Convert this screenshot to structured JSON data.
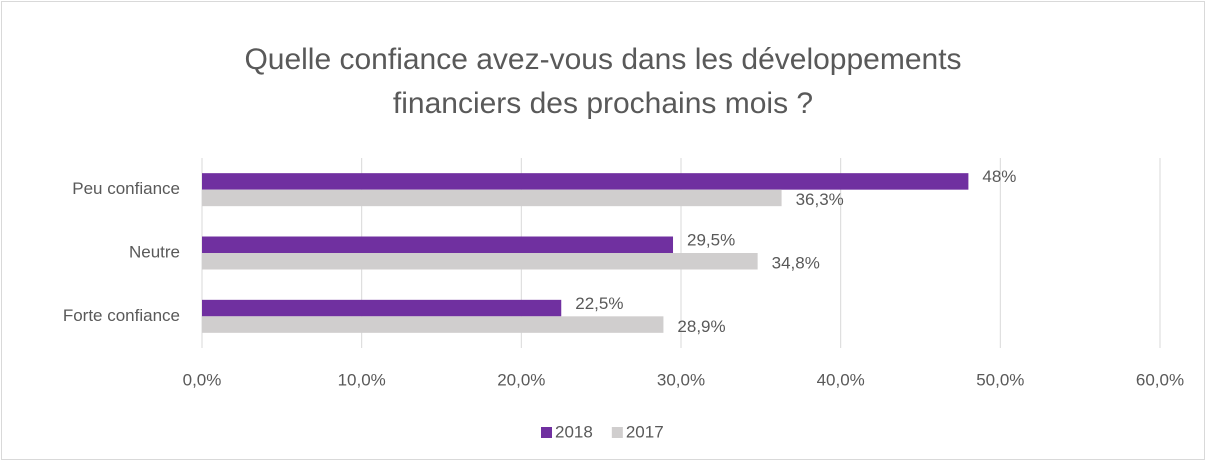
{
  "chart_data": {
    "type": "hbar",
    "title": "Quelle confiance avez-vous dans les développements financiers des prochains mois ?",
    "categories": [
      "Peu confiance",
      "Neutre",
      "Forte confiance"
    ],
    "series": [
      {
        "name": "2018",
        "color": "#7030a0",
        "values": [
          48,
          29.5,
          22.5
        ],
        "value_labels": [
          "48%",
          "29,5%",
          "22,5%"
        ]
      },
      {
        "name": "2017",
        "color": "#d0cece",
        "values": [
          36.3,
          34.8,
          28.9
        ],
        "value_labels": [
          "36,3%",
          "34,8%",
          "28,9%"
        ]
      }
    ],
    "xlim": [
      0,
      60
    ],
    "xticks": [
      {
        "value": 0,
        "label": "0,0%"
      },
      {
        "value": 10,
        "label": "10,0%"
      },
      {
        "value": 20,
        "label": "20,0%"
      },
      {
        "value": 30,
        "label": "30,0%"
      },
      {
        "value": 40,
        "label": "40,0%"
      },
      {
        "value": 50,
        "label": "50,0%"
      },
      {
        "value": 60,
        "label": "60,0%"
      }
    ],
    "grid": true,
    "legend": "bottom"
  }
}
